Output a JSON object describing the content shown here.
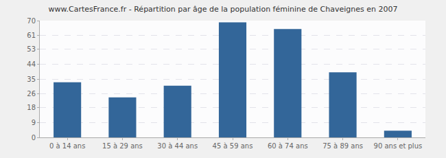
{
  "chart_data": {
    "type": "bar",
    "title": "www.CartesFrance.fr - Répartition par âge de la population féminine de Chaveignes en 2007",
    "categories": [
      "0 à 14 ans",
      "15 à 29 ans",
      "30 à 44 ans",
      "45 à 59 ans",
      "60 à 74 ans",
      "75 à 89 ans",
      "90 ans et plus"
    ],
    "values": [
      33,
      24,
      31,
      69,
      65,
      39,
      4
    ],
    "color": "#336699",
    "ylim": [
      0,
      70
    ],
    "yticks": [
      0,
      9,
      18,
      26,
      35,
      44,
      53,
      61,
      70
    ],
    "grid": true
  }
}
